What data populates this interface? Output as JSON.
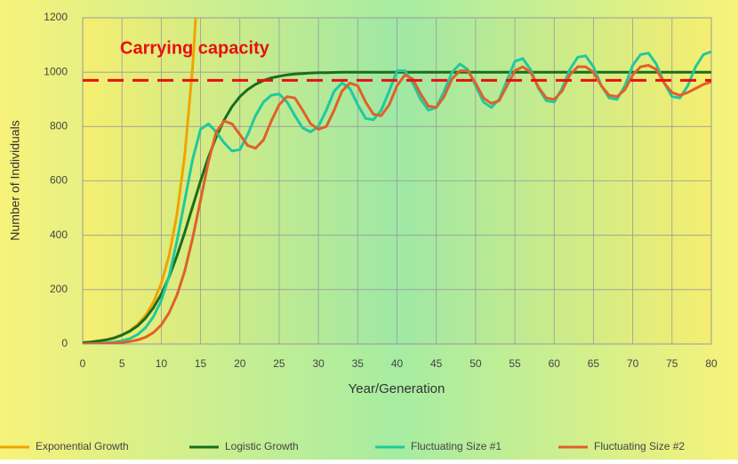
{
  "chart_data": {
    "type": "line",
    "xlabel": "Year/Generation",
    "ylabel": "Number of Individuals",
    "annotation": {
      "text": "Carrying capacity",
      "value": 970,
      "color": "#e81010"
    },
    "x": [
      0,
      1,
      2,
      3,
      4,
      5,
      6,
      7,
      8,
      9,
      10,
      11,
      12,
      13,
      14,
      15,
      16,
      17,
      18,
      19,
      20,
      21,
      22,
      23,
      24,
      25,
      26,
      27,
      28,
      29,
      30,
      31,
      32,
      33,
      34,
      35,
      36,
      37,
      38,
      39,
      40,
      41,
      42,
      43,
      44,
      45,
      46,
      47,
      48,
      49,
      50,
      51,
      52,
      53,
      54,
      55,
      56,
      57,
      58,
      59,
      60,
      61,
      62,
      63,
      64,
      65,
      66,
      67,
      68,
      69,
      70,
      71,
      72,
      73,
      74,
      75,
      76,
      77,
      78,
      79,
      80
    ],
    "series": [
      {
        "name": "Exponential Growth",
        "color": "#f0a400",
        "values": [
          5,
          7,
          11,
          16,
          23,
          33,
          49,
          72,
          105,
          153,
          223,
          326,
          478,
          698,
          1021,
          1494,
          null,
          null,
          null,
          null,
          null,
          null,
          null,
          null,
          null,
          null,
          null,
          null,
          null,
          null,
          null,
          null,
          null,
          null,
          null,
          null,
          null,
          null,
          null,
          null,
          null,
          null,
          null,
          null,
          null,
          null,
          null,
          null,
          null,
          null,
          null,
          null,
          null,
          null,
          null,
          null,
          null,
          null,
          null,
          null,
          null,
          null,
          null,
          null,
          null,
          null,
          null,
          null,
          null,
          null,
          null,
          null,
          null,
          null,
          null,
          null,
          null,
          null,
          null,
          null,
          null
        ]
      },
      {
        "name": "Logistic Growth",
        "color": "#1b6e1b",
        "values": [
          5,
          7,
          11,
          15,
          22,
          33,
          47,
          67,
          95,
          133,
          183,
          247,
          325,
          412,
          506,
          600,
          687,
          762,
          824,
          873,
          910,
          936,
          955,
          969,
          979,
          985,
          990,
          993,
          995,
          997,
          998,
          998,
          999,
          1000,
          1000,
          1000,
          1000,
          1000,
          1000,
          1000,
          1000,
          1000,
          1000,
          1000,
          1000,
          1000,
          1000,
          1000,
          1000,
          1000,
          1000,
          1000,
          1000,
          1000,
          1000,
          1000,
          1000,
          1000,
          1000,
          1000,
          1000,
          1000,
          1000,
          1000,
          1000,
          1000,
          1000,
          1000,
          1000,
          1000,
          1000,
          1000,
          1000,
          1000,
          1000,
          1000,
          1000,
          1000,
          1000,
          1000,
          1000
        ]
      },
      {
        "name": "Fluctuating Size #1",
        "color": "#22c89e",
        "values": [
          0,
          1,
          2,
          4,
          7,
          12,
          20,
          35,
          60,
          100,
          160,
          250,
          380,
          530,
          680,
          790,
          810,
          780,
          740,
          710,
          715,
          770,
          840,
          890,
          915,
          920,
          890,
          840,
          795,
          780,
          800,
          860,
          930,
          960,
          940,
          880,
          830,
          825,
          860,
          930,
          1005,
          1005,
          960,
          900,
          860,
          870,
          930,
          1000,
          1030,
          1010,
          950,
          890,
          870,
          900,
          970,
          1040,
          1050,
          1010,
          940,
          895,
          890,
          940,
          1010,
          1055,
          1060,
          1020,
          950,
          905,
          900,
          950,
          1025,
          1065,
          1070,
          1030,
          960,
          910,
          905,
          950,
          1020,
          1065,
          1075
        ]
      },
      {
        "name": "Fluctuating Size #2",
        "color": "#e0602a",
        "values": [
          0,
          0,
          1,
          2,
          3,
          5,
          9,
          15,
          25,
          42,
          70,
          115,
          180,
          270,
          390,
          530,
          670,
          780,
          820,
          810,
          770,
          730,
          720,
          750,
          820,
          880,
          910,
          905,
          860,
          810,
          790,
          800,
          860,
          930,
          960,
          950,
          890,
          845,
          840,
          880,
          950,
          990,
          975,
          920,
          875,
          870,
          910,
          975,
          1005,
          1005,
          960,
          905,
          885,
          895,
          950,
          1005,
          1020,
          1000,
          945,
          905,
          900,
          930,
          990,
          1020,
          1020,
          1000,
          950,
          915,
          910,
          935,
          990,
          1020,
          1025,
          1010,
          960,
          925,
          915,
          925,
          940,
          955,
          965
        ]
      }
    ],
    "xlim": [
      0,
      80
    ],
    "xticks": [
      0,
      5,
      10,
      15,
      20,
      25,
      30,
      35,
      40,
      45,
      50,
      55,
      60,
      65,
      70,
      75,
      80
    ],
    "ylim": [
      0,
      1200
    ],
    "yticks": [
      0,
      200,
      400,
      600,
      800,
      1000,
      1200
    ],
    "grid": true,
    "legend": "bottom"
  }
}
